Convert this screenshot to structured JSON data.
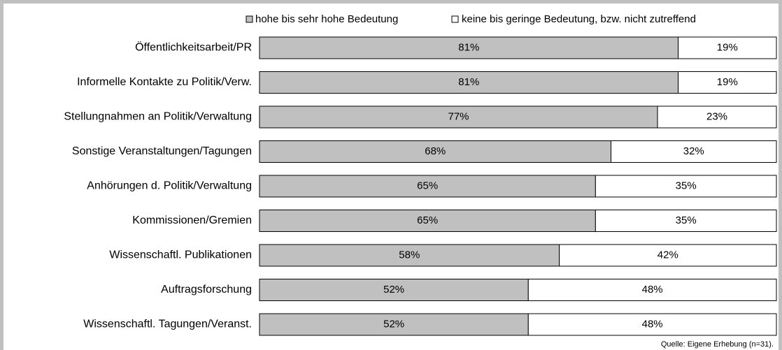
{
  "chart_data": {
    "type": "stacked-bar-horizontal",
    "categories": [
      "Öffentlichkeitsarbeit/PR",
      "Informelle Kontakte zu Politik/Verw.",
      "Stellungnahmen an Politik/Verwaltung",
      "Sonstige Veranstaltungen/Tagungen",
      "Anhörungen d. Politik/Verwaltung",
      "Kommissionen/Gremien",
      "Wissenschaftl. Publikationen",
      "Auftragsforschung",
      "Wissenschaftl. Tagungen/Veranst."
    ],
    "series": [
      {
        "name": "hohe bis sehr hohe Bedeutung",
        "color": "#c0c0c0",
        "values": [
          81,
          81,
          77,
          68,
          65,
          65,
          58,
          52,
          52
        ],
        "value_labels": [
          "81%",
          "81%",
          "77%",
          "68%",
          "65%",
          "65%",
          "58%",
          "52%",
          "52%"
        ]
      },
      {
        "name": "keine bis geringe Bedeutung, bzw. nicht zutreffend",
        "color": "#ffffff",
        "values": [
          19,
          19,
          23,
          32,
          35,
          35,
          42,
          48,
          48
        ],
        "value_labels": [
          "19%",
          "19%",
          "23%",
          "32%",
          "35%",
          "35%",
          "42%",
          "48%",
          "48%"
        ]
      }
    ],
    "source": "Quelle: Eigene Erhebung (n=31)."
  }
}
